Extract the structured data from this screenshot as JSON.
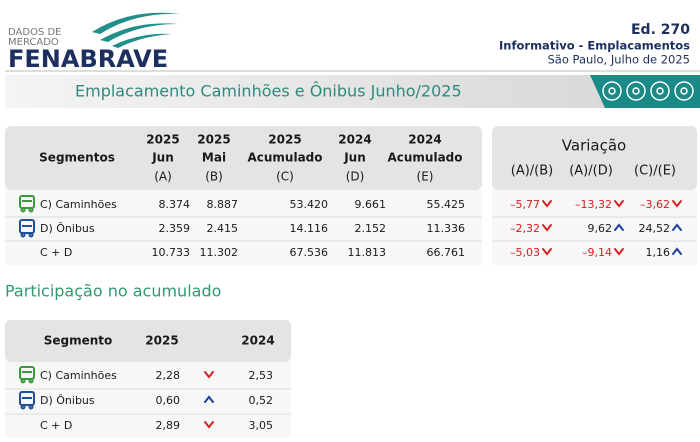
{
  "header": {
    "logo_tagline": [
      "DADOS DE",
      "MERCADO"
    ],
    "logo": "FENABRAVE",
    "edition": "Ed. 270",
    "publication": "Informativo - Emplacamentos",
    "place_date": "São Paulo, Julho de 2025"
  },
  "banner": {
    "title": "Emplacamento Caminhões e Ônibus Junho/2025"
  },
  "registrations_table": {
    "segment_header": "Segmentos",
    "columns": [
      {
        "year": "2025",
        "period": "Jun",
        "ref": "(A)"
      },
      {
        "year": "2025",
        "period": "Mai",
        "ref": "(B)"
      },
      {
        "year": "2025",
        "period": "Acumulado",
        "ref": "(C)"
      },
      {
        "year": "2024",
        "period": "Jun",
        "ref": "(D)"
      },
      {
        "year": "2024",
        "period": "Acumulado",
        "ref": "(E)"
      }
    ],
    "rows": [
      {
        "segment": "C) Caminhões",
        "icon": "truck",
        "values": [
          "8.374",
          "8.887",
          "53.420",
          "9.661",
          "55.425"
        ]
      },
      {
        "segment": "D) Ônibus",
        "icon": "bus",
        "values": [
          "2.359",
          "2.415",
          "14.116",
          "2.152",
          "11.336"
        ]
      },
      {
        "segment": "C + D",
        "values": [
          "10.733",
          "11.302",
          "67.536",
          "11.813",
          "66.761"
        ]
      }
    ]
  },
  "variation_table": {
    "title": "Variação",
    "columns": [
      "(A)/(B)",
      "(A)/(D)",
      "(C)/(E)"
    ],
    "rows": [
      [
        {
          "value": "–5,77",
          "trend": "down"
        },
        {
          "value": "–13,32",
          "trend": "down"
        },
        {
          "value": "–3,62",
          "trend": "down"
        }
      ],
      [
        {
          "value": "–2,32",
          "trend": "down"
        },
        {
          "value": "9,62",
          "trend": "up"
        },
        {
          "value": "24,52",
          "trend": "up"
        }
      ],
      [
        {
          "value": "–5,03",
          "trend": "down"
        },
        {
          "value": "–9,14",
          "trend": "down"
        },
        {
          "value": "1,16",
          "trend": "up"
        }
      ]
    ]
  },
  "share_section": {
    "title": "Participação no acumulado"
  },
  "share_table": {
    "columns": [
      "Segmento",
      "2025",
      "2024"
    ],
    "rows": [
      {
        "segment": "C) Caminhões",
        "icon": "truck",
        "values": [
          "2,28",
          "2,53"
        ],
        "trend": "down"
      },
      {
        "segment": "D) Ônibus",
        "icon": "bus",
        "values": [
          "0,60",
          "0,52"
        ],
        "trend": "up"
      },
      {
        "segment": "C + D",
        "values": [
          "2,89",
          "3,05"
        ],
        "trend": "down"
      }
    ]
  }
}
